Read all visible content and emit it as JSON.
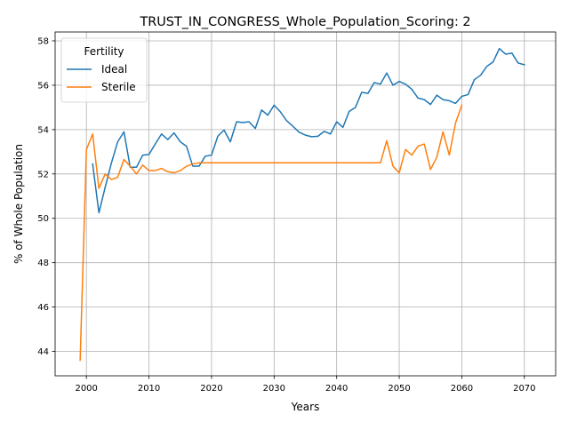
{
  "chart_data": {
    "type": "line",
    "title": "TRUST_IN_CONGRESS_Whole_Population_Scoring: 2",
    "xlabel": "Years",
    "ylabel": "% of Whole Population",
    "xlim": [
      1995,
      2075
    ],
    "ylim": [
      42.9,
      58.4
    ],
    "xticks": [
      2000,
      2010,
      2020,
      2030,
      2040,
      2050,
      2060,
      2070
    ],
    "yticks": [
      44,
      46,
      48,
      50,
      52,
      54,
      56,
      58
    ],
    "grid": true,
    "legend": {
      "title": "Fertility",
      "placement": "top-left"
    },
    "series": [
      {
        "name": "Ideal",
        "color": "#1f77b4",
        "x": [
          2001,
          2002,
          2003,
          2004,
          2005,
          2006,
          2007,
          2008,
          2009,
          2010,
          2011,
          2012,
          2013,
          2014,
          2015,
          2016,
          2017,
          2018,
          2019,
          2020,
          2021,
          2022,
          2023,
          2024,
          2025,
          2026,
          2027,
          2028,
          2029,
          2030,
          2031,
          2032,
          2033,
          2034,
          2035,
          2036,
          2037,
          2038,
          2039,
          2040,
          2041,
          2042,
          2043,
          2044,
          2045,
          2046,
          2047,
          2048,
          2049,
          2050,
          2051,
          2052,
          2053,
          2054,
          2055,
          2056,
          2057,
          2058,
          2059,
          2060,
          2061,
          2062,
          2063,
          2064,
          2065,
          2066,
          2067,
          2068,
          2069,
          2070
        ],
        "y": [
          52.45,
          50.25,
          51.4,
          52.5,
          53.45,
          53.9,
          52.3,
          52.3,
          52.85,
          52.88,
          53.35,
          53.8,
          53.55,
          53.85,
          53.45,
          53.25,
          52.35,
          52.35,
          52.8,
          52.85,
          53.7,
          53.98,
          53.45,
          54.35,
          54.32,
          54.35,
          54.05,
          54.88,
          54.65,
          55.1,
          54.8,
          54.4,
          54.15,
          53.88,
          53.75,
          53.68,
          53.7,
          53.92,
          53.8,
          54.35,
          54.1,
          54.82,
          55.0,
          55.68,
          55.63,
          56.12,
          56.05,
          56.55,
          56.0,
          56.17,
          56.05,
          55.82,
          55.42,
          55.35,
          55.13,
          55.55,
          55.35,
          55.3,
          55.18,
          55.5,
          55.58,
          56.25,
          56.45,
          56.85,
          57.05,
          57.65,
          57.4,
          57.45,
          57.0,
          56.92
        ]
      },
      {
        "name": "Sterile",
        "color": "#ff7f0e",
        "x": [
          1999,
          2000,
          2001,
          2002,
          2003,
          2004,
          2005,
          2006,
          2007,
          2008,
          2009,
          2010,
          2011,
          2012,
          2013,
          2014,
          2015,
          2016,
          2017,
          2018,
          2019,
          2020,
          2021,
          2022,
          2023,
          2024,
          2025,
          2026,
          2027,
          2028,
          2029,
          2030,
          2031,
          2032,
          2033,
          2034,
          2035,
          2036,
          2037,
          2038,
          2039,
          2040,
          2041,
          2042,
          2043,
          2044,
          2045,
          2046,
          2047,
          2048,
          2049,
          2050,
          2051,
          2052,
          2053,
          2054,
          2055,
          2056,
          2057,
          2058,
          2059,
          2060
        ],
        "y": [
          43.6,
          53.1,
          53.8,
          51.35,
          52.0,
          51.75,
          51.85,
          52.65,
          52.35,
          52.0,
          52.4,
          52.15,
          52.15,
          52.25,
          52.1,
          52.05,
          52.15,
          52.35,
          52.45,
          52.5,
          52.5,
          52.5,
          52.5,
          52.5,
          52.5,
          52.5,
          52.5,
          52.5,
          52.5,
          52.5,
          52.5,
          52.5,
          52.5,
          52.5,
          52.5,
          52.5,
          52.5,
          52.5,
          52.5,
          52.5,
          52.5,
          52.5,
          52.5,
          52.5,
          52.5,
          52.5,
          52.5,
          52.5,
          52.5,
          53.5,
          52.35,
          52.05,
          53.1,
          52.85,
          53.25,
          53.35,
          52.2,
          52.75,
          53.9,
          52.85,
          54.3,
          55.1
        ]
      }
    ]
  }
}
